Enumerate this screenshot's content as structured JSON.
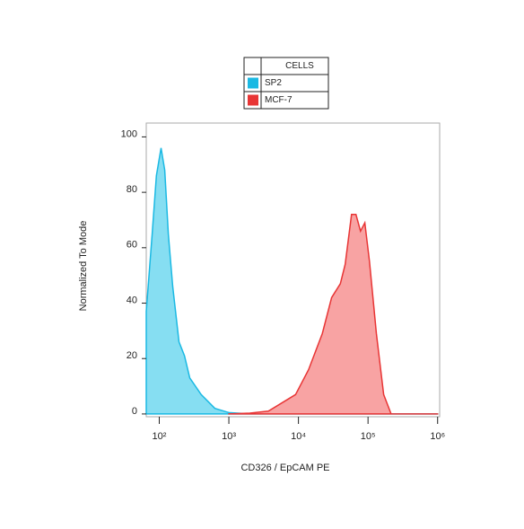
{
  "chart_data": {
    "type": "area",
    "x_label": "CD326 / EpCAM  PE",
    "y_label": "Normalized To Mode",
    "legend_title": "CELLS",
    "xscale": "log",
    "xlim": [
      65,
      1070000
    ],
    "ylim": [
      -1,
      105
    ],
    "xticks": [
      {
        "value": 100,
        "label": "10²"
      },
      {
        "value": 1000,
        "label": "10³"
      },
      {
        "value": 10000,
        "label": "10⁴"
      },
      {
        "value": 100000,
        "label": "10⁵"
      },
      {
        "value": 1000000,
        "label": "10⁶"
      }
    ],
    "yticks": [
      0,
      20,
      40,
      60,
      80,
      100
    ],
    "series": [
      {
        "name": "SP2",
        "color": "#1bb9e3",
        "fill": "#86def2",
        "x": [
          65,
          79,
          91,
          106,
          120,
          135,
          156,
          192,
          230,
          274,
          400,
          630,
          1000,
          2000,
          10000,
          100000,
          1000000
        ],
        "values": [
          37,
          65,
          86,
          96,
          88,
          65,
          46,
          26,
          21,
          13,
          7,
          2,
          0.5,
          0,
          0,
          0,
          0
        ]
      },
      {
        "name": "MCF-7",
        "color": "#e83535",
        "fill": "#f8a3a3",
        "x": [
          1000,
          2000,
          3700,
          9100,
          14000,
          22000,
          30000,
          40000,
          47000,
          58000,
          67000,
          78000,
          90000,
          105000,
          132000,
          168000,
          215000,
          1000000
        ],
        "values": [
          0,
          0.3,
          1,
          7,
          16,
          29,
          42,
          47,
          54,
          72,
          72,
          66,
          69,
          55,
          29,
          7,
          0,
          0
        ]
      }
    ]
  }
}
